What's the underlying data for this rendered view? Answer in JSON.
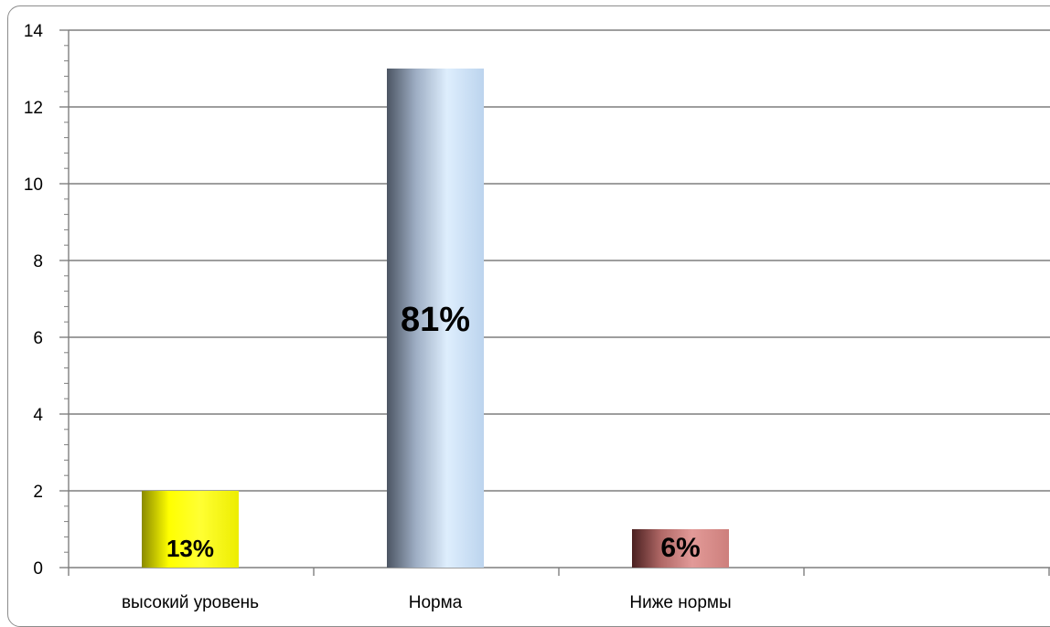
{
  "chart_data": {
    "type": "bar",
    "categories": [
      "высокий уровень",
      "Норма",
      "Ниже нормы",
      "",
      ""
    ],
    "values": [
      2,
      13,
      1,
      null,
      null
    ],
    "data_labels": [
      "13%",
      "81%",
      "6%",
      "",
      ""
    ],
    "ylim": [
      0,
      14
    ],
    "yticks": [
      "0",
      "2",
      "4",
      "6",
      "8",
      "10",
      "12",
      "14"
    ],
    "title": "",
    "xlabel": "",
    "ylabel": "",
    "grid": true,
    "legend": "none"
  },
  "colors": {
    "bar_1": "#ffff00",
    "bar_2": "#b0c4de",
    "bar_3": "#c9716e",
    "gridline": "#7f7f7f",
    "axis": "#7f7f7f",
    "frame": "#8c8c8c"
  }
}
